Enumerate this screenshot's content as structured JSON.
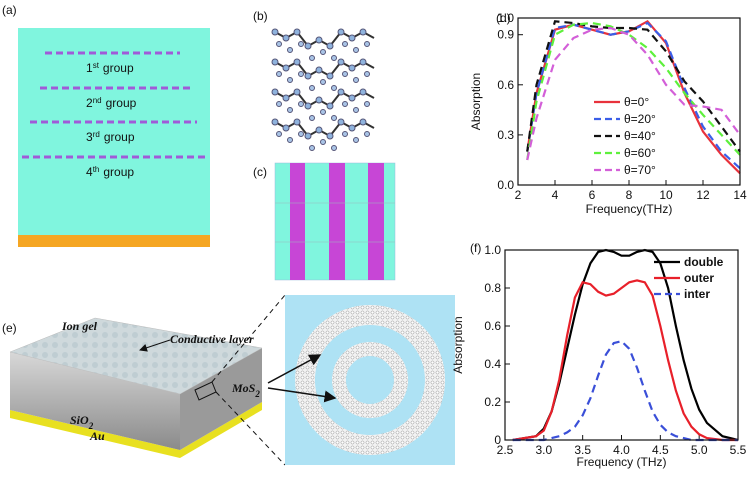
{
  "panels": {
    "a": {
      "label": "(a)",
      "groups": [
        {
          "num": "1",
          "sup": "st",
          "text": "group"
        },
        {
          "num": "2",
          "sup": "nd",
          "text": "group"
        },
        {
          "num": "3",
          "sup": "rd",
          "text": "group"
        },
        {
          "num": "4",
          "sup": "th",
          "text": "group"
        }
      ]
    },
    "b": {
      "label": "(b)"
    },
    "c": {
      "label": "(c)"
    },
    "e": {
      "label": "(e)",
      "ion_gel": "Ion gel",
      "conductive": "Conductive layer",
      "mos2": {
        "base": "MoS",
        "sub": "2"
      },
      "sio2": {
        "base": "SiO",
        "sub": "2"
      },
      "au": "Au"
    }
  },
  "chart_data": [
    {
      "type": "line",
      "panel": "(d)",
      "xlabel": "Frequency(THz)",
      "ylabel": "Absorption",
      "x": [
        2.5,
        3,
        4,
        5,
        6,
        7,
        8,
        9,
        10,
        11,
        12,
        13,
        14
      ],
      "xlim": [
        2,
        14
      ],
      "xticks": [
        2,
        4,
        6,
        8,
        10,
        12,
        14
      ],
      "ylim": [
        0,
        1
      ],
      "yticks": [
        {
          "value": 0,
          "label": "0.0"
        },
        0.3,
        0.6,
        0.9,
        {
          "value": 1,
          "label": "1.0"
        }
      ],
      "legend": "lower center",
      "grid": false,
      "series": [
        {
          "name": "θ=0°",
          "color": "#e8323c",
          "dash": "solid",
          "values": [
            0.2,
            0.55,
            0.93,
            0.96,
            0.93,
            0.9,
            0.92,
            0.98,
            0.85,
            0.55,
            0.32,
            0.18,
            0.07
          ]
        },
        {
          "name": "θ=20°",
          "color": "#3a5ee8",
          "dash": "dashed",
          "values": [
            0.2,
            0.55,
            0.94,
            0.96,
            0.93,
            0.9,
            0.92,
            0.97,
            0.86,
            0.58,
            0.35,
            0.2,
            0.1
          ]
        },
        {
          "name": "θ=40°",
          "color": "#111111",
          "dash": "dashed",
          "values": [
            0.2,
            0.6,
            0.98,
            0.97,
            0.95,
            0.94,
            0.94,
            0.93,
            0.8,
            0.62,
            0.5,
            0.35,
            0.2
          ]
        },
        {
          "name": "θ=60°",
          "color": "#5ef03c",
          "dash": "dashed",
          "values": [
            0.15,
            0.5,
            0.9,
            0.96,
            0.97,
            0.95,
            0.9,
            0.82,
            0.7,
            0.55,
            0.42,
            0.3,
            0.18
          ]
        },
        {
          "name": "θ=70°",
          "color": "#d35fd8",
          "dash": "dashed",
          "values": [
            0.15,
            0.4,
            0.75,
            0.88,
            0.93,
            0.94,
            0.9,
            0.78,
            0.6,
            0.48,
            0.47,
            0.45,
            0.3
          ]
        }
      ]
    },
    {
      "type": "line",
      "panel": "(f)",
      "xlabel": "Frequency (THz)",
      "ylabel": "Absorption",
      "x": [
        2.6,
        2.9,
        3.0,
        3.1,
        3.2,
        3.3,
        3.4,
        3.5,
        3.6,
        3.7,
        3.8,
        3.9,
        4.0,
        4.1,
        4.2,
        4.3,
        4.4,
        4.5,
        4.6,
        4.7,
        4.8,
        4.9,
        5.0,
        5.1,
        5.3,
        5.5
      ],
      "xlim": [
        2.5,
        5.5
      ],
      "xticks": [
        2.5,
        {
          "value": 3,
          "label": "3.0"
        },
        3.5,
        {
          "value": 4,
          "label": "4.0"
        },
        4.5,
        {
          "value": 5,
          "label": "5.0"
        },
        5.5
      ],
      "ylim": [
        0,
        1
      ],
      "yticks": [
        {
          "value": 0,
          "label": "0"
        },
        0.2,
        0.4,
        0.6,
        0.8,
        {
          "value": 1,
          "label": "1.0"
        }
      ],
      "legend": "upper right",
      "grid": false,
      "series": [
        {
          "name": "double",
          "color": "#000000",
          "dash": "solid",
          "values": [
            0,
            0.02,
            0.06,
            0.15,
            0.3,
            0.48,
            0.66,
            0.82,
            0.93,
            0.99,
            1.0,
            0.99,
            0.97,
            0.97,
            0.99,
            1.0,
            0.99,
            0.93,
            0.8,
            0.6,
            0.42,
            0.27,
            0.16,
            0.09,
            0.02,
            0
          ]
        },
        {
          "name": "outer",
          "color": "#e8202a",
          "dash": "solid",
          "values": [
            0,
            0.02,
            0.05,
            0.15,
            0.32,
            0.55,
            0.75,
            0.83,
            0.82,
            0.78,
            0.76,
            0.77,
            0.8,
            0.83,
            0.84,
            0.83,
            0.76,
            0.6,
            0.42,
            0.26,
            0.14,
            0.07,
            0.03,
            0.01,
            0,
            0
          ]
        },
        {
          "name": "inter",
          "color": "#3a4fd8",
          "dash": "dashed",
          "values": [
            0,
            0,
            0,
            0.01,
            0.02,
            0.04,
            0.07,
            0.13,
            0.22,
            0.34,
            0.45,
            0.51,
            0.52,
            0.48,
            0.38,
            0.26,
            0.15,
            0.08,
            0.04,
            0.02,
            0.01,
            0,
            0,
            0,
            0,
            0
          ]
        }
      ]
    }
  ]
}
